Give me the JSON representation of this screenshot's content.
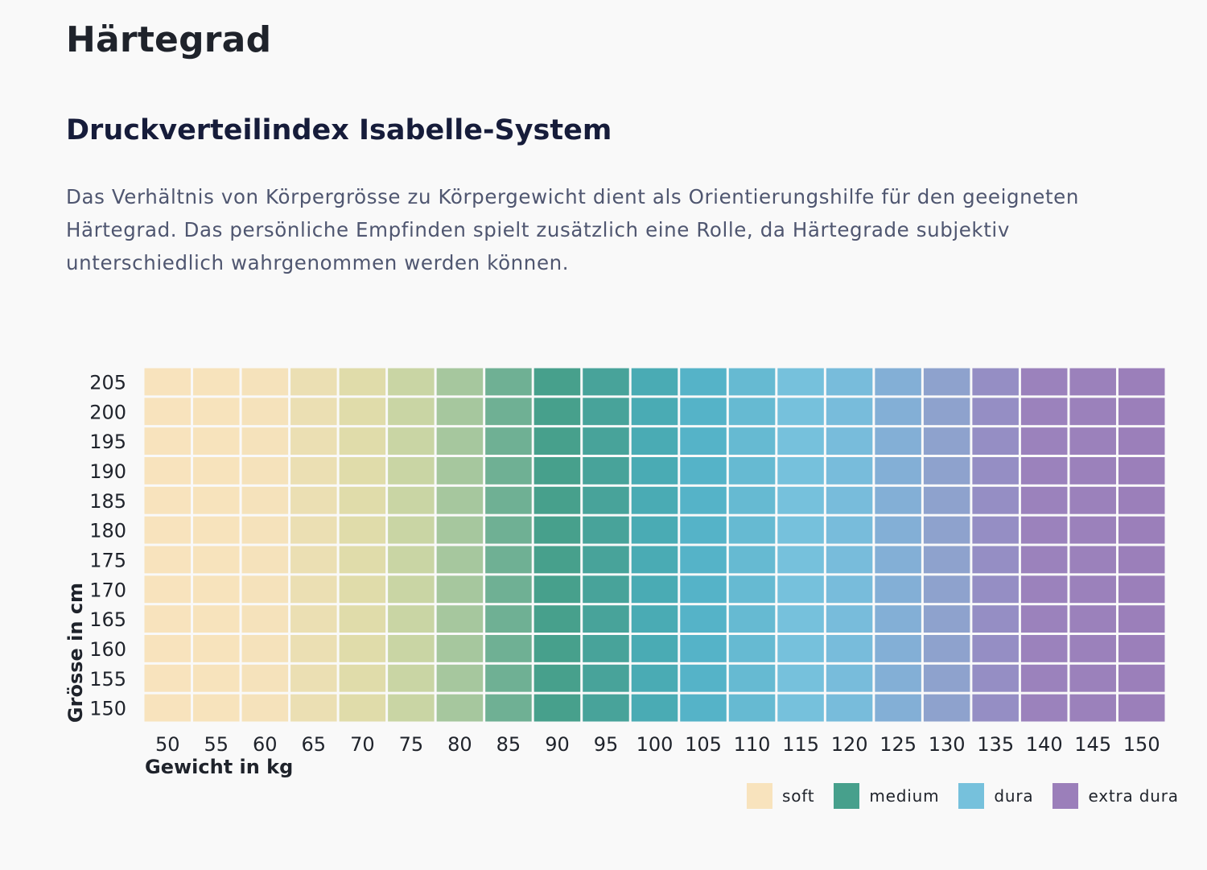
{
  "page_title": "Härtegrad",
  "section_title": "Druckverteilindex Isabelle-System",
  "description": "Das Verhältnis von Körpergrösse zu Körpergewicht dient als Orientierungshilfe für den geeigneten Härtegrad. Das persönliche Empfinden spielt zusätzlich eine Rolle, da Härtegrade subjektiv unterschiedlich wahrgenommen werden können.",
  "colors": {
    "soft": "#f8e3bd",
    "medium": "#47a08c",
    "dura": "#76c1dc",
    "extra_dura": "#9b7fba",
    "background": "#f9f9f9"
  },
  "chart_data": {
    "type": "heatmap",
    "title": "",
    "xlabel": "Gewicht in kg",
    "ylabel": "Grösse in cm",
    "x": [
      50,
      55,
      60,
      65,
      70,
      75,
      80,
      85,
      90,
      95,
      100,
      105,
      110,
      115,
      120,
      125,
      130,
      135,
      140,
      145,
      150
    ],
    "y": [
      205,
      200,
      195,
      190,
      185,
      180,
      175,
      170,
      165,
      160,
      155,
      150
    ],
    "color_scale": [
      {
        "kg": 50,
        "color": "#f8e3bd"
      },
      {
        "kg": 60,
        "color": "#f5e2bb"
      },
      {
        "kg": 70,
        "color": "#e0dcaa"
      },
      {
        "kg": 75,
        "color": "#c9d5a4"
      },
      {
        "kg": 80,
        "color": "#a6c79e"
      },
      {
        "kg": 85,
        "color": "#6fb094"
      },
      {
        "kg": 90,
        "color": "#47a08c"
      },
      {
        "kg": 95,
        "color": "#48a39a"
      },
      {
        "kg": 100,
        "color": "#4aabb4"
      },
      {
        "kg": 105,
        "color": "#55b3c8"
      },
      {
        "kg": 115,
        "color": "#76c1dc"
      },
      {
        "kg": 120,
        "color": "#78bcdb"
      },
      {
        "kg": 125,
        "color": "#83afd6"
      },
      {
        "kg": 130,
        "color": "#8ea2cd"
      },
      {
        "kg": 135,
        "color": "#958ec4"
      },
      {
        "kg": 140,
        "color": "#9b82bc"
      },
      {
        "kg": 150,
        "color": "#9b7fba"
      }
    ],
    "legend": [
      {
        "label": "soft",
        "color": "#f8e3bd"
      },
      {
        "label": "medium",
        "color": "#47a08c"
      },
      {
        "label": "dura",
        "color": "#76c1dc"
      },
      {
        "label": "extra dura",
        "color": "#9b7fba"
      }
    ],
    "legend_position": "bottom-right",
    "grid": true
  }
}
